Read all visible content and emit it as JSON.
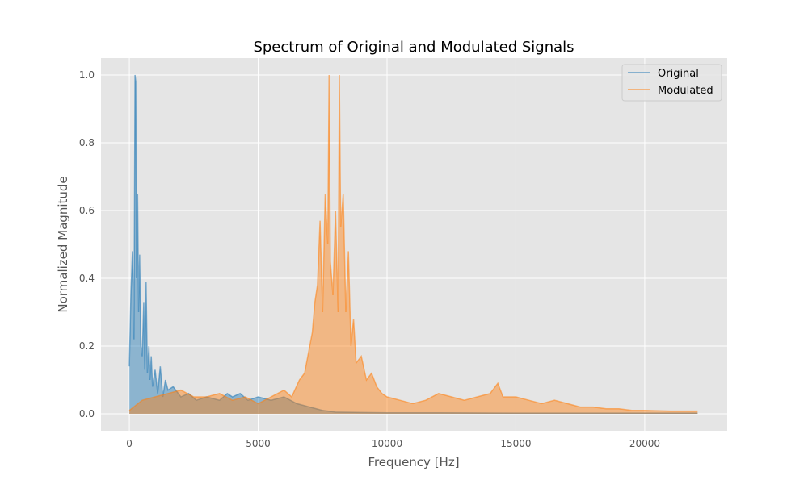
{
  "chart_data": {
    "type": "line",
    "title": "Spectrum of Original and Modulated Signals",
    "xlabel": "Frequency [Hz]",
    "ylabel": "Normalized Magnitude",
    "xlim": [
      -1100,
      23200
    ],
    "ylim": [
      -0.05,
      1.05
    ],
    "xticks": [
      0,
      5000,
      10000,
      15000,
      20000
    ],
    "xtick_labels": [
      "0",
      "5000",
      "10000",
      "15000",
      "20000"
    ],
    "yticks": [
      0.0,
      0.2,
      0.4,
      0.6,
      0.8,
      1.0
    ],
    "ytick_labels": [
      "0.0",
      "0.2",
      "0.4",
      "0.6",
      "0.8",
      "1.0"
    ],
    "grid": true,
    "legend_position": "top-right",
    "colors": {
      "background": "#e5e5e5",
      "grid": "#ffffff"
    },
    "series": [
      {
        "name": "Original",
        "color": "#1f77b4",
        "x": [
          0,
          60,
          120,
          180,
          220,
          250,
          280,
          320,
          360,
          400,
          450,
          500,
          560,
          600,
          650,
          700,
          760,
          800,
          850,
          900,
          1000,
          1100,
          1200,
          1300,
          1400,
          1500,
          1700,
          2000,
          2300,
          2600,
          3000,
          3500,
          3800,
          4000,
          4300,
          4600,
          5000,
          5500,
          6000,
          6500,
          7000,
          7500,
          8000,
          9000,
          10000,
          12000,
          15000,
          18000,
          20000,
          22050
        ],
        "y": [
          0.14,
          0.35,
          0.48,
          0.22,
          1.0,
          0.98,
          0.4,
          0.65,
          0.3,
          0.47,
          0.2,
          0.17,
          0.33,
          0.13,
          0.39,
          0.12,
          0.2,
          0.1,
          0.17,
          0.08,
          0.13,
          0.06,
          0.14,
          0.05,
          0.1,
          0.07,
          0.08,
          0.05,
          0.06,
          0.04,
          0.05,
          0.04,
          0.06,
          0.05,
          0.06,
          0.04,
          0.05,
          0.04,
          0.05,
          0.03,
          0.02,
          0.01,
          0.005,
          0.004,
          0.003,
          0.003,
          0.002,
          0.002,
          0.002,
          0.002
        ]
      },
      {
        "name": "Modulated",
        "color": "#ff7f0e",
        "x": [
          0,
          500,
          1000,
          1500,
          2000,
          2500,
          3000,
          3500,
          4000,
          4500,
          5000,
          5500,
          6000,
          6300,
          6600,
          6800,
          7000,
          7100,
          7200,
          7300,
          7400,
          7500,
          7600,
          7700,
          7750,
          7800,
          7900,
          8000,
          8100,
          8150,
          8200,
          8300,
          8400,
          8500,
          8600,
          8700,
          8800,
          9000,
          9200,
          9400,
          9600,
          9800,
          10000,
          10500,
          11000,
          11500,
          12000,
          12500,
          13000,
          13500,
          14000,
          14300,
          14500,
          15000,
          15500,
          16000,
          16500,
          17000,
          17500,
          18000,
          18500,
          19000,
          19500,
          20000,
          21000,
          22050
        ],
        "y": [
          0.01,
          0.04,
          0.05,
          0.06,
          0.07,
          0.05,
          0.05,
          0.06,
          0.04,
          0.05,
          0.03,
          0.05,
          0.07,
          0.05,
          0.1,
          0.12,
          0.2,
          0.24,
          0.33,
          0.38,
          0.57,
          0.3,
          0.65,
          0.5,
          1.0,
          0.45,
          0.35,
          0.6,
          0.3,
          1.0,
          0.55,
          0.65,
          0.3,
          0.48,
          0.2,
          0.28,
          0.15,
          0.17,
          0.1,
          0.12,
          0.08,
          0.06,
          0.05,
          0.04,
          0.03,
          0.04,
          0.06,
          0.05,
          0.04,
          0.05,
          0.06,
          0.09,
          0.05,
          0.05,
          0.04,
          0.03,
          0.04,
          0.03,
          0.02,
          0.02,
          0.015,
          0.015,
          0.01,
          0.01,
          0.008,
          0.008
        ]
      }
    ]
  }
}
